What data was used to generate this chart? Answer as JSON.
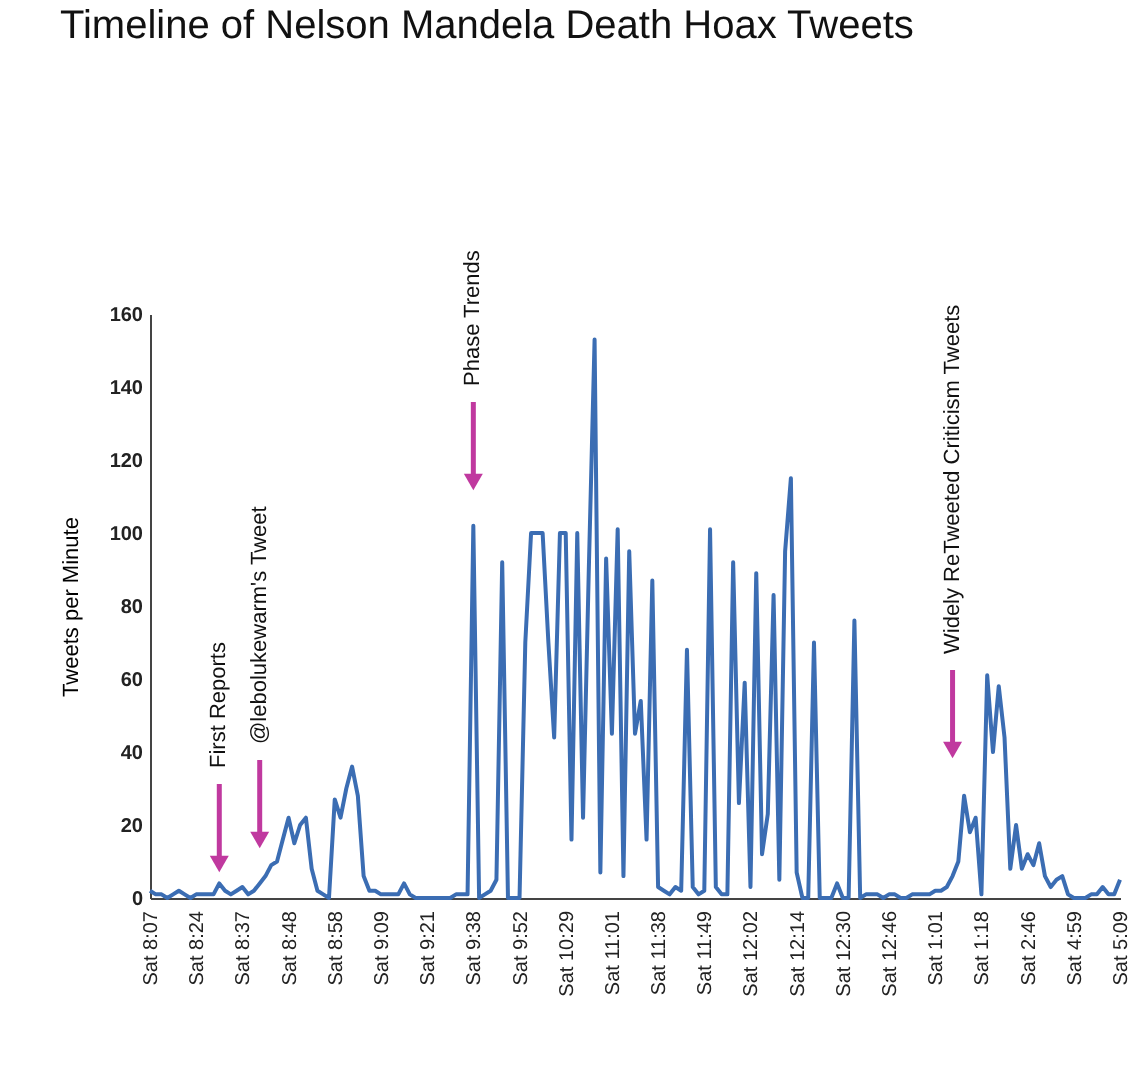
{
  "chart_data": {
    "type": "line",
    "title": "Timeline of Nelson Mandela Death Hoax Tweets",
    "ylabel": "Tweets per Minute",
    "categories": [
      "Sat 8:07",
      null,
      null,
      null,
      null,
      null,
      null,
      null,
      "Sat 8:24",
      null,
      null,
      null,
      null,
      null,
      null,
      null,
      "Sat 8:37",
      null,
      null,
      null,
      null,
      null,
      null,
      null,
      "Sat 8:48",
      null,
      null,
      null,
      null,
      null,
      null,
      null,
      "Sat 8:58",
      null,
      null,
      null,
      null,
      null,
      null,
      null,
      "Sat 9:09",
      null,
      null,
      null,
      null,
      null,
      null,
      null,
      "Sat 9:21",
      null,
      null,
      null,
      null,
      null,
      null,
      null,
      "Sat 9:38",
      null,
      null,
      null,
      null,
      null,
      null,
      null,
      "Sat 9:52",
      null,
      null,
      null,
      null,
      null,
      null,
      null,
      "Sat 10:29",
      null,
      null,
      null,
      null,
      null,
      null,
      null,
      "Sat 11:01",
      null,
      null,
      null,
      null,
      null,
      null,
      null,
      "Sat 11:38",
      null,
      null,
      null,
      null,
      null,
      null,
      null,
      "Sat 11:49",
      null,
      null,
      null,
      null,
      null,
      null,
      null,
      "Sat 12:02",
      null,
      null,
      null,
      null,
      null,
      null,
      null,
      "Sat 12:14",
      null,
      null,
      null,
      null,
      null,
      null,
      null,
      "Sat 12:30",
      null,
      null,
      null,
      null,
      null,
      null,
      null,
      "Sat 12:46",
      null,
      null,
      null,
      null,
      null,
      null,
      null,
      "Sat 1:01",
      null,
      null,
      null,
      null,
      null,
      null,
      null,
      "Sat 1:18",
      null,
      null,
      null,
      null,
      null,
      null,
      null,
      "Sat 2:46",
      null,
      null,
      null,
      null,
      null,
      null,
      null,
      "Sat 4:59",
      null,
      null,
      null,
      null,
      null,
      null,
      null,
      "Sat 5:09"
    ],
    "values": [
      2,
      1,
      1,
      0,
      1,
      2,
      1,
      0,
      1,
      1,
      1,
      1,
      4,
      2,
      1,
      2,
      3,
      1,
      2,
      4,
      6,
      9,
      10,
      16,
      22,
      15,
      20,
      22,
      8,
      2,
      1,
      0,
      27,
      22,
      30,
      36,
      28,
      6,
      2,
      2,
      1,
      1,
      1,
      1,
      4,
      1,
      0,
      0,
      0,
      0,
      0,
      0,
      0,
      1,
      1,
      1,
      102,
      0,
      1,
      2,
      5,
      92,
      0,
      0,
      0,
      70,
      100,
      100,
      100,
      70,
      44,
      100,
      100,
      16,
      100,
      22,
      90,
      153,
      7,
      93,
      45,
      101,
      6,
      95,
      45,
      54,
      16,
      87,
      3,
      2,
      1,
      3,
      2,
      68,
      3,
      1,
      2,
      101,
      3,
      1,
      1,
      92,
      26,
      59,
      3,
      89,
      12,
      23,
      83,
      5,
      95,
      115,
      7,
      0,
      0,
      70,
      0,
      0,
      0,
      4,
      0,
      0,
      76,
      0,
      1,
      1,
      1,
      0,
      1,
      1,
      0,
      0,
      1,
      1,
      1,
      1,
      2,
      2,
      3,
      6,
      10,
      28,
      18,
      22,
      1,
      61,
      40,
      58,
      44,
      8,
      20,
      8,
      12,
      9,
      15,
      6,
      3,
      5,
      6,
      1,
      0,
      0,
      0,
      1,
      1,
      3,
      1,
      1,
      5
    ],
    "color": "#3b6db3",
    "ylim": [
      0,
      160
    ],
    "yticks": [
      0,
      20,
      40,
      60,
      80,
      100,
      120,
      140,
      160
    ],
    "annotations": [
      "First Reports",
      "@lebolukewarm's Tweet",
      "Phase Trends",
      "Widely ReTweeted Criticism Tweets"
    ]
  }
}
